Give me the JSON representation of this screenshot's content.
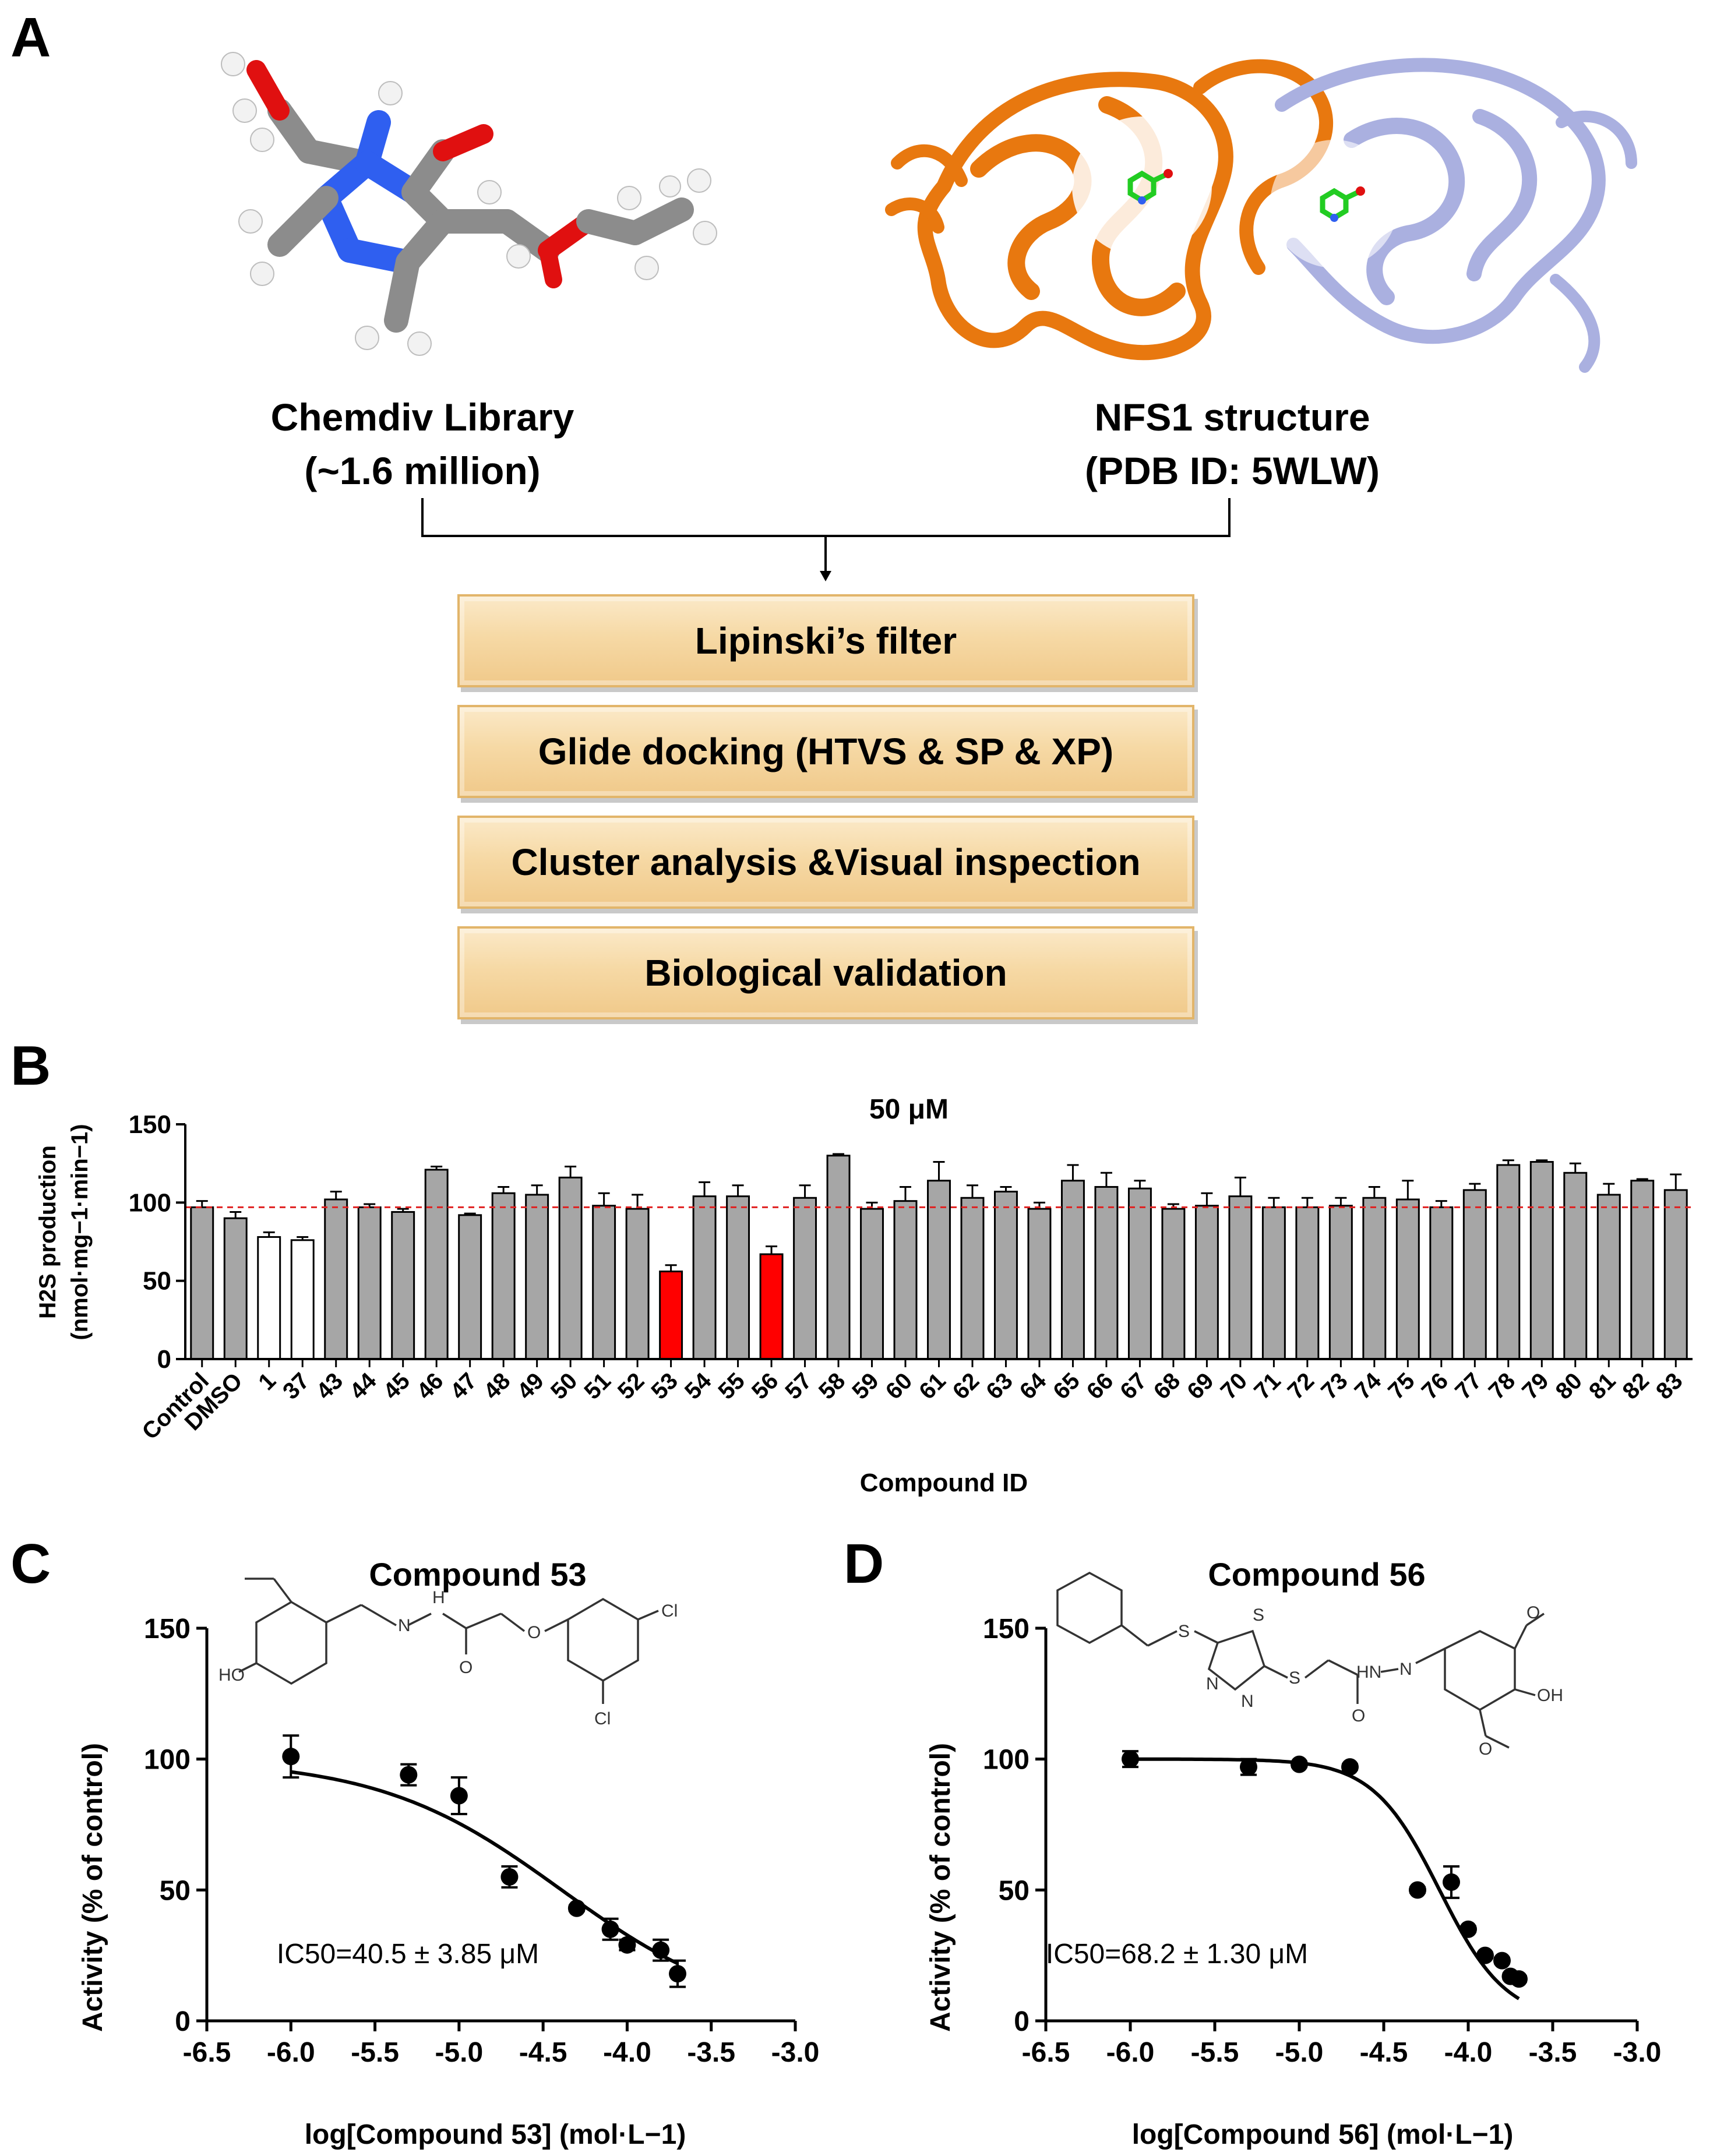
{
  "panels": {
    "a": "A",
    "b": "B",
    "c": "C",
    "d": "D"
  },
  "panel_a": {
    "left_title_line1": "Chemdiv Library",
    "left_title_line2": "(~1.6 million)",
    "right_title_line1": "NFS1 structure",
    "right_title_line2": "(PDB ID: 5WLW)",
    "steps": [
      "Lipinski’s filter",
      "Glide docking (HTVS & SP & XP)",
      "Cluster analysis &Visual inspection",
      "Biological validation"
    ],
    "colors": {
      "protein_chain_a": "#e8780f",
      "protein_chain_b": "#aab0e0",
      "carbon": "#8c8c8c",
      "nitrogen": "#2f5ff0",
      "oxygen": "#e01010",
      "hydrogen": "#f2f2f2",
      "ligand": "#22cc22"
    }
  },
  "chart_data": [
    {
      "type": "bar",
      "panel": "B",
      "title": "50 μM",
      "xlabel": "Compound ID",
      "ylabel_line1": "H2S production",
      "ylabel_line2": "(nmol·mg−1·min−1)",
      "ylim": [
        0,
        150
      ],
      "yticks": [
        0,
        50,
        100,
        150
      ],
      "reference_line": 97,
      "reference_color": "#e02020",
      "categories": [
        "Control",
        "DMSO",
        "1",
        "37",
        "43",
        "44",
        "45",
        "46",
        "47",
        "48",
        "49",
        "50",
        "51",
        "52",
        "53",
        "54",
        "55",
        "56",
        "57",
        "58",
        "59",
        "60",
        "61",
        "62",
        "63",
        "64",
        "65",
        "66",
        "67",
        "68",
        "69",
        "70",
        "71",
        "72",
        "73",
        "74",
        "75",
        "76",
        "77",
        "78",
        "79",
        "80",
        "81",
        "82",
        "83"
      ],
      "values": [
        97,
        90,
        78,
        76,
        102,
        97,
        94,
        121,
        92,
        106,
        105,
        116,
        98,
        96,
        56,
        104,
        104,
        67,
        103,
        130,
        96,
        101,
        114,
        103,
        107,
        96,
        114,
        110,
        109,
        96,
        98,
        104,
        97,
        97,
        98,
        103,
        102,
        97,
        108,
        124,
        126,
        119,
        105,
        114,
        108
      ],
      "errors": [
        4,
        4,
        3,
        2,
        5,
        2,
        2,
        2,
        1,
        4,
        6,
        7,
        8,
        9,
        4,
        9,
        7,
        5,
        8,
        1,
        4,
        9,
        12,
        8,
        3,
        4,
        10,
        9,
        5,
        3,
        8,
        12,
        6,
        6,
        5,
        7,
        12,
        4,
        4,
        3,
        1,
        6,
        7,
        1,
        10
      ],
      "bar_colors": [
        "#a6a6a6",
        "#a6a6a6",
        "#ffffff",
        "#ffffff",
        "#a6a6a6",
        "#a6a6a6",
        "#a6a6a6",
        "#a6a6a6",
        "#a6a6a6",
        "#a6a6a6",
        "#a6a6a6",
        "#a6a6a6",
        "#a6a6a6",
        "#a6a6a6",
        "#ff0000",
        "#a6a6a6",
        "#a6a6a6",
        "#ff0000",
        "#a6a6a6",
        "#a6a6a6",
        "#a6a6a6",
        "#a6a6a6",
        "#a6a6a6",
        "#a6a6a6",
        "#a6a6a6",
        "#a6a6a6",
        "#a6a6a6",
        "#a6a6a6",
        "#a6a6a6",
        "#a6a6a6",
        "#a6a6a6",
        "#a6a6a6",
        "#a6a6a6",
        "#a6a6a6",
        "#a6a6a6",
        "#a6a6a6",
        "#a6a6a6",
        "#a6a6a6",
        "#a6a6a6",
        "#a6a6a6",
        "#a6a6a6",
        "#a6a6a6",
        "#a6a6a6",
        "#a6a6a6",
        "#a6a6a6"
      ]
    },
    {
      "type": "scatter",
      "panel": "C",
      "title": "Compound 53",
      "xlabel": "log[Compound 53] (mol·L−1)",
      "ylabel": "Activity (% of control)",
      "xlim": [
        -6.5,
        -3.0
      ],
      "ylim": [
        0,
        150
      ],
      "xticks": [
        -6.5,
        -6.0,
        -5.5,
        -5.0,
        -4.5,
        -4.0,
        -3.5,
        -3.0
      ],
      "yticks": [
        0,
        50,
        100,
        150
      ],
      "x": [
        -6.0,
        -5.3,
        -5.0,
        -4.7,
        -4.3,
        -4.1,
        -4.0,
        -3.8,
        -3.7
      ],
      "y": [
        101,
        94,
        86,
        55,
        43,
        35,
        29,
        27,
        18
      ],
      "errors": [
        8,
        4,
        7,
        4,
        1,
        4,
        2,
        4,
        5
      ],
      "fit": {
        "top": 100,
        "bottom": 0,
        "log_ic50": -4.39,
        "hill": 0.8
      },
      "annotation": "IC50=40.5 ± 3.85 μM",
      "structure_labels": [
        "HO",
        "N",
        "H",
        "O",
        "O",
        "Cl",
        "Cl"
      ]
    },
    {
      "type": "scatter",
      "panel": "D",
      "title": "Compound 56",
      "xlabel": "log[Compound 56] (mol·L−1)",
      "ylabel": "Activity (% of control)",
      "xlim": [
        -6.5,
        -3.0
      ],
      "ylim": [
        0,
        150
      ],
      "xticks": [
        -6.5,
        -6.0,
        -5.5,
        -5.0,
        -4.5,
        -4.0,
        -3.5,
        -3.0
      ],
      "yticks": [
        0,
        50,
        100,
        150
      ],
      "x": [
        -6.0,
        -5.3,
        -5.0,
        -4.7,
        -4.3,
        -4.1,
        -4.0,
        -3.9,
        -3.8,
        -3.75,
        -3.7
      ],
      "y": [
        100,
        97,
        98,
        97,
        50,
        53,
        35,
        25,
        23,
        17,
        16
      ],
      "errors": [
        3,
        3,
        1,
        1,
        1,
        6,
        1,
        1,
        1,
        1,
        1
      ],
      "fit": {
        "top": 100,
        "bottom": 0,
        "log_ic50": -4.17,
        "hill": 2.2
      },
      "annotation": "IC50=68.2 ± 1.30 μM",
      "structure_labels": [
        "S",
        "S",
        "S",
        "N",
        "N",
        "HN",
        "N",
        "O",
        "OH",
        "O",
        "O"
      ]
    }
  ]
}
